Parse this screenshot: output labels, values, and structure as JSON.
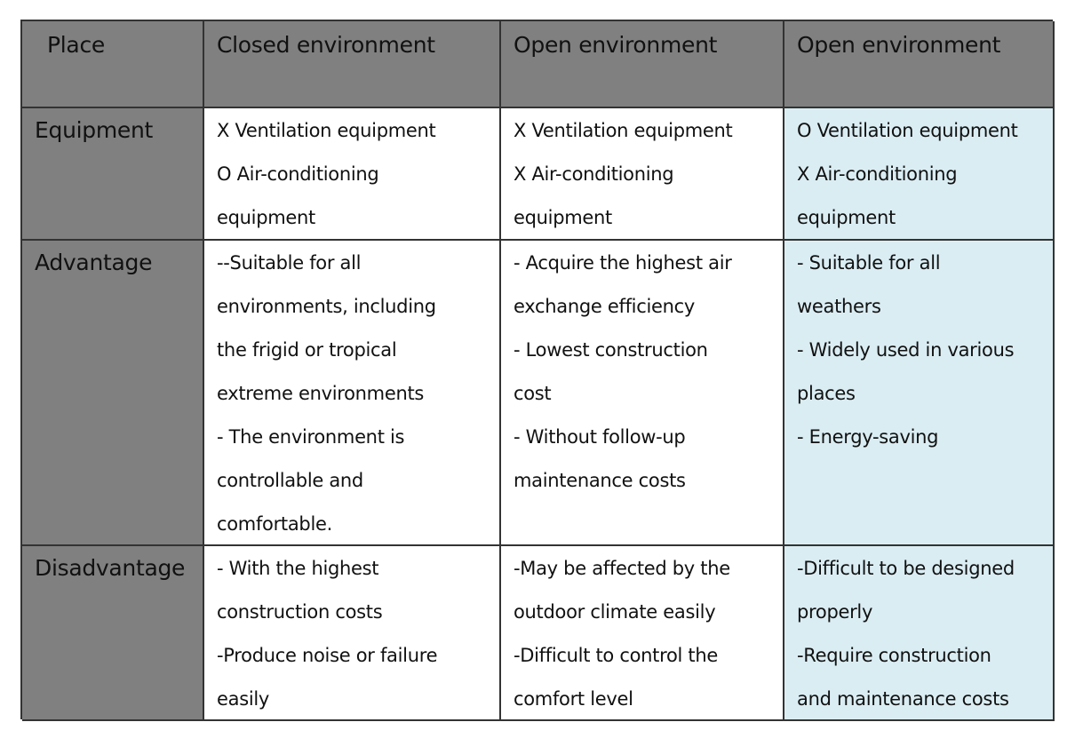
{
  "table": {
    "header": [
      "Place",
      "Closed environment",
      "Open environment",
      "Open environment"
    ],
    "rows": [
      {
        "label": "Equipment",
        "cells": [
          [
            "X Ventilation equipment",
            "O Air-conditioning",
            "equipment"
          ],
          [
            "X Ventilation equipment",
            "X Air-conditioning",
            "equipment"
          ],
          [
            "O Ventilation equipment",
            "X Air-conditioning",
            "equipment"
          ]
        ]
      },
      {
        "label": "Advantage",
        "cells": [
          [
            "--Suitable for all",
            "environments, including",
            "the frigid or tropical",
            "extreme environments",
            "- The environment is",
            "controllable and",
            "comfortable."
          ],
          [
            "- Acquire the highest air",
            "exchange efficiency",
            "- Lowest construction",
            "cost",
            "- Without follow-up",
            "maintenance costs"
          ],
          [
            "- Suitable for all",
            "weathers",
            "- Widely used in various",
            "places",
            "- Energy-saving"
          ]
        ]
      },
      {
        "label": "Disadvantage",
        "cells": [
          [
            "- With the highest",
            "construction costs",
            "-Produce noise or failure",
            "easily"
          ],
          [
            "-May be affected by the",
            "outdoor climate easily",
            "-Difficult to control the",
            "comfort level"
          ],
          [
            "-Difficult to be designed",
            "properly",
            "-Require construction",
            "and maintenance costs"
          ]
        ]
      }
    ],
    "colors": {
      "header_bg": "#808080",
      "highlight_column_bg": "#daedf3",
      "cell_bg": "#ffffff",
      "border": "#333333"
    }
  }
}
